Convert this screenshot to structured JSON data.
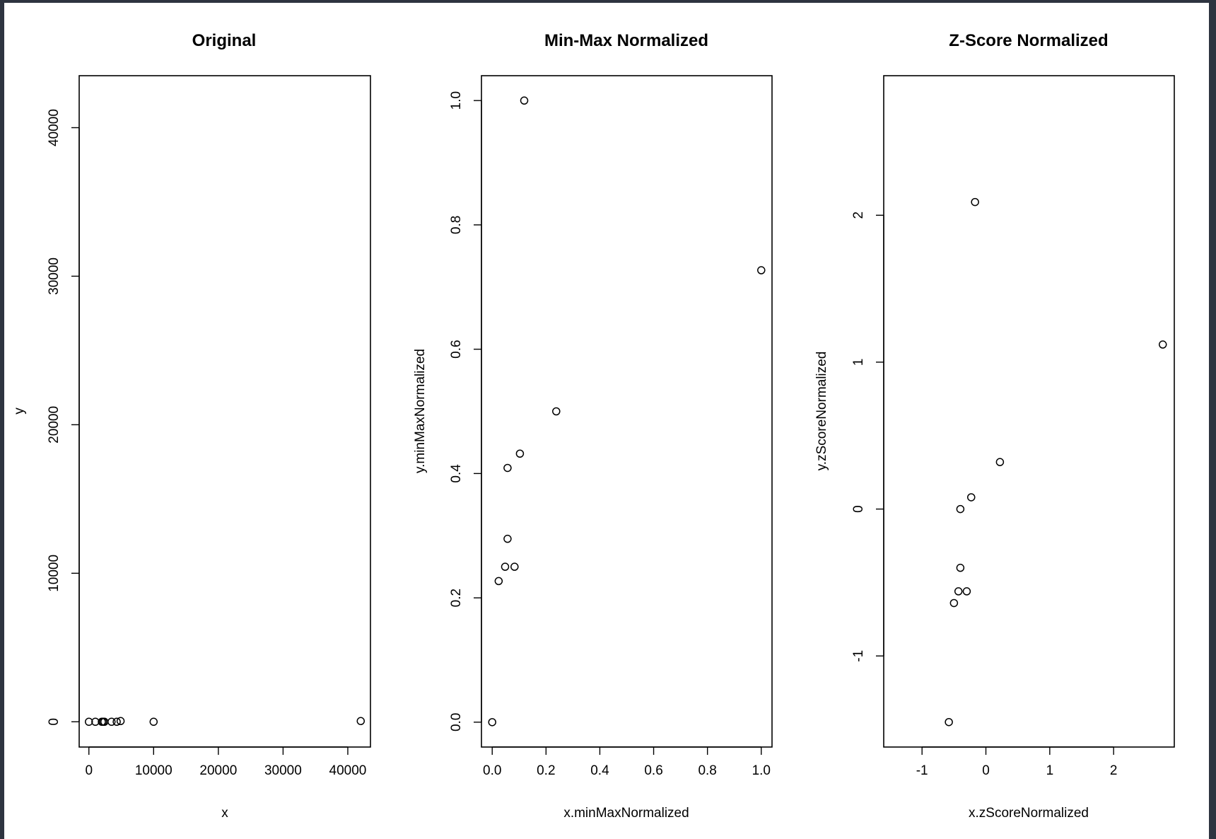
{
  "panels": [
    {
      "title": "Original",
      "xlabel": "x",
      "ylabel": "y"
    },
    {
      "title": "Min-Max Normalized",
      "xlabel": "x.minMaxNormalized",
      "ylabel": "y.minMaxNormalized"
    },
    {
      "title": "Z-Score Normalized",
      "xlabel": "x.zScoreNormalized",
      "ylabel": "y.zScoreNormalized"
    }
  ],
  "chart_data": [
    {
      "type": "scatter",
      "title": "Original",
      "xlabel": "x",
      "ylabel": "y",
      "xlim": [
        -1500,
        43500
      ],
      "ylim": [
        -1700,
        43500
      ],
      "xticks": [
        0,
        10000,
        20000,
        30000,
        40000
      ],
      "xticklabels": [
        "0",
        "10000",
        "20000",
        "30000",
        "40000"
      ],
      "yticks": [
        0,
        10000,
        20000,
        30000,
        40000
      ],
      "yticklabels": [
        "0",
        "10000",
        "20000",
        "30000",
        "40000"
      ],
      "x": [
        0,
        1000,
        2000,
        2200,
        2400,
        3500,
        4300,
        4900,
        10000,
        42000
      ],
      "y": [
        0,
        0,
        0,
        0,
        0,
        0,
        0,
        50,
        0,
        50
      ],
      "grid": false
    },
    {
      "type": "scatter",
      "title": "Min-Max Normalized",
      "xlabel": "x.minMaxNormalized",
      "ylabel": "y.minMaxNormalized",
      "xlim": [
        -0.04,
        1.04
      ],
      "ylim": [
        -0.04,
        1.04
      ],
      "xticks": [
        0,
        0.2,
        0.4,
        0.6,
        0.8,
        1
      ],
      "xticklabels": [
        "0.0",
        "0.2",
        "0.4",
        "0.6",
        "0.8",
        "1.0"
      ],
      "yticks": [
        0,
        0.2,
        0.4,
        0.6,
        0.8,
        1
      ],
      "yticklabels": [
        "0.0",
        "0.2",
        "0.4",
        "0.6",
        "0.8",
        "1.0"
      ],
      "x": [
        0.0,
        0.024,
        0.048,
        0.057,
        0.057,
        0.083,
        0.103,
        0.119,
        0.238,
        1.0
      ],
      "y": [
        0.0,
        0.227,
        0.25,
        0.295,
        0.409,
        0.25,
        0.432,
        1.0,
        0.5,
        0.727
      ],
      "grid": false
    },
    {
      "type": "scatter",
      "title": "Z-Score Normalized",
      "xlabel": "x.zScoreNormalized",
      "ylabel": "y.zScoreNormalized",
      "xlim": [
        -1.6,
        2.95
      ],
      "ylim": [
        -1.62,
        2.95
      ],
      "xticks": [
        -1,
        0,
        1,
        2
      ],
      "xticklabels": [
        "-1",
        "0",
        "1",
        "2"
      ],
      "yticks": [
        -1,
        0,
        1,
        2
      ],
      "yticklabels": [
        "-1",
        "0",
        "1",
        "2"
      ],
      "x": [
        -0.58,
        -0.5,
        -0.43,
        -0.4,
        -0.4,
        -0.3,
        -0.23,
        -0.17,
        0.22,
        2.77
      ],
      "y": [
        -1.45,
        -0.64,
        -0.56,
        -0.4,
        0.0,
        -0.56,
        0.08,
        2.09,
        0.32,
        1.12
      ],
      "grid": false
    }
  ]
}
